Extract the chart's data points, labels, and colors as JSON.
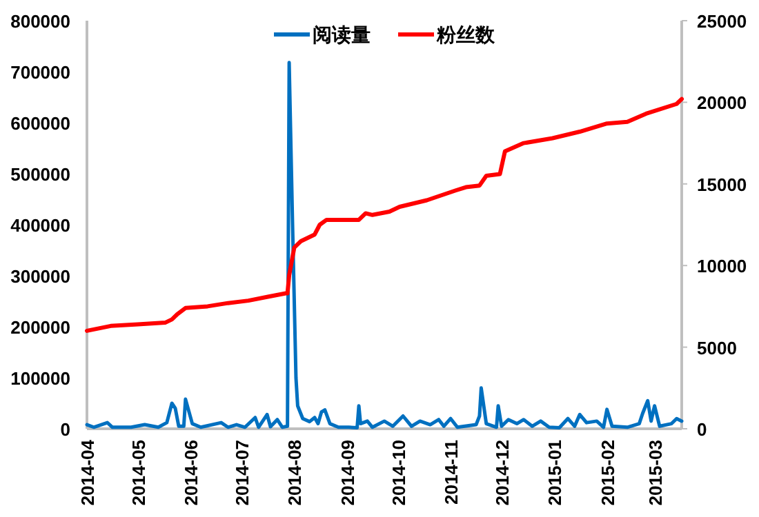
{
  "chart_data": {
    "type": "line",
    "legend": "top",
    "grid": false,
    "marker": "none",
    "line_style": "solid",
    "xlim": [
      "2014-04-01",
      "2015-03-17"
    ],
    "xticks": [
      {
        "value": "2014-04-01",
        "label": "2014-04"
      },
      {
        "value": "2014-05-01",
        "label": "2014-05"
      },
      {
        "value": "2014-06-01",
        "label": "2014-06"
      },
      {
        "value": "2014-07-01",
        "label": "2014-07"
      },
      {
        "value": "2014-08-01",
        "label": "2014-08"
      },
      {
        "value": "2014-09-01",
        "label": "2014-09"
      },
      {
        "value": "2014-10-01",
        "label": "2014-10"
      },
      {
        "value": "2014-11-01",
        "label": "2014-11"
      },
      {
        "value": "2014-12-01",
        "label": "2014-12"
      },
      {
        "value": "2015-01-01",
        "label": "2015-01"
      },
      {
        "value": "2015-02-01",
        "label": "2015-02"
      },
      {
        "value": "2015-03-01",
        "label": "2015-03"
      }
    ],
    "ylim": [
      0,
      800000
    ],
    "yticks": [
      0,
      100000,
      200000,
      300000,
      400000,
      500000,
      600000,
      700000,
      800000
    ],
    "y2lim": [
      0,
      25000
    ],
    "y2ticks": [
      0,
      5000,
      10000,
      15000,
      20000,
      25000
    ],
    "series": [
      {
        "name": "阅读量",
        "color": "#0070c0",
        "x": [
          "2014-04-01",
          "2014-04-05",
          "2014-04-13",
          "2014-04-16",
          "2014-04-27",
          "2014-05-05",
          "2014-05-13",
          "2014-05-18",
          "2014-05-21",
          "2014-05-23",
          "2014-05-25",
          "2014-05-28",
          "2014-05-29",
          "2014-06-02",
          "2014-06-07",
          "2014-06-19",
          "2014-06-23",
          "2014-06-28",
          "2014-07-03",
          "2014-07-09",
          "2014-07-11",
          "2014-07-16",
          "2014-07-18",
          "2014-07-22",
          "2014-07-25",
          "2014-07-28",
          "2014-07-29",
          "2014-07-31",
          "2014-08-02",
          "2014-08-03",
          "2014-08-06",
          "2014-08-10",
          "2014-08-13",
          "2014-08-15",
          "2014-08-17",
          "2014-08-19",
          "2014-08-22",
          "2014-08-27",
          "2014-09-02",
          "2014-09-07",
          "2014-09-08",
          "2014-09-09",
          "2014-09-13",
          "2014-09-16",
          "2014-09-23",
          "2014-09-28",
          "2014-10-04",
          "2014-10-09",
          "2014-10-14",
          "2014-10-20",
          "2014-10-25",
          "2014-10-28",
          "2014-11-01",
          "2014-11-05",
          "2014-11-16",
          "2014-11-18",
          "2014-11-19",
          "2014-11-22",
          "2014-11-28",
          "2014-11-29",
          "2014-12-01",
          "2014-12-05",
          "2014-12-10",
          "2014-12-14",
          "2014-12-19",
          "2014-12-24",
          "2014-12-29",
          "2015-01-04",
          "2015-01-09",
          "2015-01-13",
          "2015-01-16",
          "2015-01-20",
          "2015-01-26",
          "2015-01-30",
          "2015-02-01",
          "2015-02-04",
          "2015-02-13",
          "2015-02-20",
          "2015-02-22",
          "2015-02-25",
          "2015-02-27",
          "2015-03-01",
          "2015-03-04",
          "2015-03-11",
          "2015-03-14",
          "2015-03-17"
        ],
        "values": [
          8000,
          3000,
          12000,
          3000,
          3000,
          8000,
          3000,
          12000,
          50000,
          40000,
          5000,
          5000,
          58000,
          10000,
          3000,
          12000,
          3000,
          8000,
          3000,
          22000,
          3000,
          28000,
          4000,
          18000,
          3000,
          5000,
          718000,
          400000,
          100000,
          45000,
          20000,
          14000,
          22000,
          10000,
          33000,
          37000,
          10000,
          3000,
          3000,
          2000,
          45000,
          10000,
          15000,
          3000,
          15000,
          5000,
          25000,
          5000,
          15000,
          8000,
          18000,
          5000,
          20000,
          3000,
          8000,
          25000,
          80000,
          10000,
          3000,
          45000,
          5000,
          18000,
          10000,
          18000,
          5000,
          15000,
          3000,
          2000,
          20000,
          5000,
          28000,
          12000,
          15000,
          3000,
          38000,
          5000,
          3000,
          10000,
          30000,
          55000,
          15000,
          45000,
          5000,
          10000,
          20000,
          15000
        ]
      },
      {
        "name": "粉丝数",
        "color": "#ff0000",
        "axis": "y2",
        "x": [
          "2014-04-01",
          "2014-04-15",
          "2014-05-01",
          "2014-05-17",
          "2014-05-21",
          "2014-05-24",
          "2014-05-29",
          "2014-06-11",
          "2014-06-23",
          "2014-07-05",
          "2014-07-17",
          "2014-07-27",
          "2014-07-28",
          "2014-07-29",
          "2014-08-01",
          "2014-08-05",
          "2014-08-13",
          "2014-08-16",
          "2014-08-20",
          "2014-09-08",
          "2014-09-12",
          "2014-09-16",
          "2014-09-26",
          "2014-10-02",
          "2014-10-18",
          "2014-11-04",
          "2014-11-10",
          "2014-11-18",
          "2014-11-22",
          "2014-11-30",
          "2014-12-03",
          "2014-12-14",
          "2014-12-31",
          "2015-01-16",
          "2015-02-01",
          "2015-02-13",
          "2015-02-24",
          "2015-03-14",
          "2015-03-17"
        ],
        "values": [
          6000,
          6300,
          6400,
          6500,
          6700,
          7000,
          7400,
          7500,
          7700,
          7850,
          8100,
          8300,
          8300,
          9400,
          11100,
          11500,
          11900,
          12500,
          12800,
          12800,
          13200,
          13100,
          13300,
          13600,
          14000,
          14600,
          14800,
          14900,
          15500,
          15600,
          17000,
          17500,
          17800,
          18200,
          18700,
          18800,
          19300,
          19900,
          20200
        ]
      }
    ]
  }
}
